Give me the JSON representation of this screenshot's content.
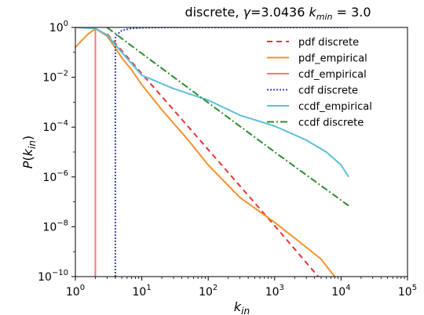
{
  "chart_data": {
    "type": "line",
    "title": "discrete, γ=3.0436 k_min = 3.0",
    "xlabel": "k_in",
    "ylabel": "P(k_in)",
    "xscale": "log",
    "yscale": "log",
    "xlim": [
      1,
      100000
    ],
    "ylim": [
      1e-10,
      1
    ],
    "grid": false,
    "legend_position": "top-right",
    "x_ticks": [
      {
        "value": 1,
        "base": "10",
        "exp": "0"
      },
      {
        "value": 10,
        "base": "10",
        "exp": "1"
      },
      {
        "value": 100,
        "base": "10",
        "exp": "2"
      },
      {
        "value": 1000,
        "base": "10",
        "exp": "3"
      },
      {
        "value": 10000,
        "base": "10",
        "exp": "4"
      },
      {
        "value": 100000,
        "base": "10",
        "exp": "5"
      }
    ],
    "y_ticks": [
      {
        "value": 1,
        "base": "10",
        "exp": "0"
      },
      {
        "value": 0.01,
        "base": "10",
        "exp": "−2"
      },
      {
        "value": 0.0001,
        "base": "10",
        "exp": "−4"
      },
      {
        "value": 1e-06,
        "base": "10",
        "exp": "−6"
      },
      {
        "value": 1e-08,
        "base": "10",
        "exp": "−8"
      },
      {
        "value": 1e-10,
        "base": "10",
        "exp": "−10"
      }
    ],
    "series": [
      {
        "name": "pdf discrete",
        "color": "#e8333a",
        "dash": "7,5",
        "points": [
          [
            3,
            0.55
          ],
          [
            10,
            0.014
          ],
          [
            100,
            1.25e-05
          ],
          [
            1000,
            1.1e-08
          ],
          [
            5000,
            7.4e-11
          ]
        ]
      },
      {
        "name": "pdf_empirical",
        "color": "#f5922e",
        "dash": "",
        "points": [
          [
            1,
            0.16
          ],
          [
            1.5,
            0.5
          ],
          [
            2,
            0.9
          ],
          [
            3,
            0.45
          ],
          [
            4,
            0.15
          ],
          [
            5,
            0.06
          ],
          [
            7,
            0.02
          ],
          [
            10,
            0.005
          ],
          [
            20,
            0.0005
          ],
          [
            50,
            3e-05
          ],
          [
            100,
            3e-06
          ],
          [
            300,
            1.5e-07
          ],
          [
            1000,
            1.5e-08
          ],
          [
            3000,
            1.5e-09
          ],
          [
            5000,
            5e-10
          ],
          [
            8000,
            1e-10
          ]
        ]
      },
      {
        "name": "cdf_empirical",
        "color": "#ef7b7b",
        "dash": "",
        "points": [
          [
            2,
            1e-10
          ],
          [
            2,
            1
          ]
        ]
      },
      {
        "name": "cdf discrete",
        "color": "#3949ab",
        "dash": "2,2",
        "points": [
          [
            4,
            1e-10
          ],
          [
            4,
            0.45
          ],
          [
            5,
            0.75
          ],
          [
            7,
            0.92
          ],
          [
            10,
            0.97
          ],
          [
            20,
            0.995
          ],
          [
            100,
            1
          ],
          [
            13000,
            1
          ]
        ]
      },
      {
        "name": "ccdf_empirical",
        "color": "#5bc0d6",
        "dash": "",
        "points": [
          [
            1,
            1
          ],
          [
            2,
            0.92
          ],
          [
            3,
            0.5
          ],
          [
            5,
            0.1
          ],
          [
            10,
            0.012
          ],
          [
            30,
            0.0035
          ],
          [
            100,
            0.0012
          ],
          [
            300,
            0.0003
          ],
          [
            1000,
            0.00011
          ],
          [
            3000,
            3e-05
          ],
          [
            6000,
            1e-05
          ],
          [
            10000,
            3e-06
          ],
          [
            13000,
            1e-06
          ]
        ]
      },
      {
        "name": "ccdf discrete",
        "color": "#2e8b2e",
        "dash": "9,3,2,3",
        "points": [
          [
            3,
            1
          ],
          [
            10,
            0.09
          ],
          [
            100,
            0.00095
          ],
          [
            1000,
            1e-05
          ],
          [
            13000,
            7e-08
          ]
        ]
      }
    ]
  }
}
